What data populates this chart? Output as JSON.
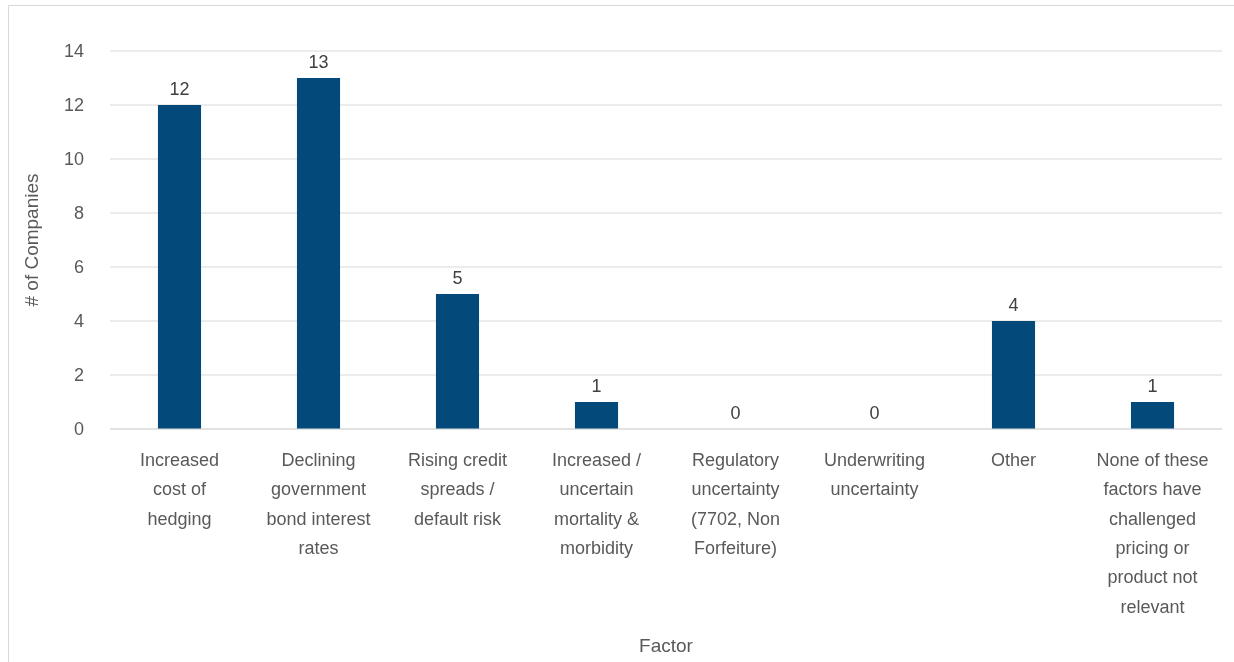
{
  "chart_data": {
    "type": "bar",
    "xlabel": "Factor",
    "ylabel": "# of Companies",
    "categories": [
      "Increased cost of hedging",
      "Declining government bond interest rates",
      "Rising credit spreads / default risk",
      "Increased / uncertain mortality & morbidity",
      "Regulatory uncertainty (7702, Non Forfeiture)",
      "Underwriting uncertainty",
      "Other",
      "None of these factors have challenged pricing or product not relevant"
    ],
    "values": [
      12,
      13,
      5,
      1,
      0,
      0,
      4,
      1
    ],
    "color": "#034a7a",
    "ylim": [
      0,
      14
    ],
    "yticks": [
      0,
      2,
      4,
      6,
      8,
      10,
      12,
      14
    ],
    "grid": "y",
    "data_labels": true
  }
}
